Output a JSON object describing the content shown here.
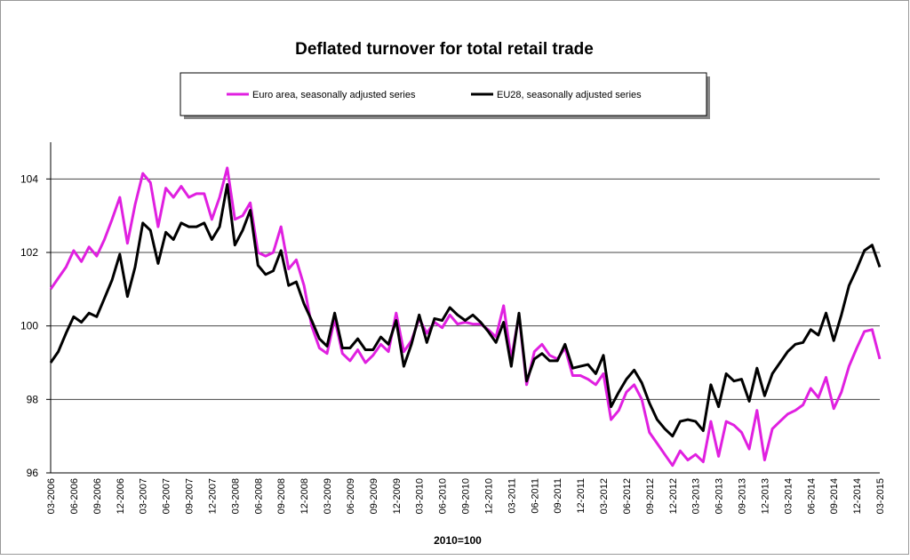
{
  "chart_data": {
    "type": "line",
    "title": "Deflated turnover for total retail trade",
    "xlabel": "2010=100",
    "categories": [
      "03-2006",
      null,
      null,
      "06-2006",
      null,
      null,
      "09-2006",
      null,
      null,
      "12-2006",
      null,
      null,
      "03-2007",
      null,
      null,
      "06-2007",
      null,
      null,
      "09-2007",
      null,
      null,
      "12-2007",
      null,
      null,
      "03-2008",
      null,
      null,
      "06-2008",
      null,
      null,
      "09-2008",
      null,
      null,
      "12-2008",
      null,
      null,
      "03-2009",
      null,
      null,
      "06-2009",
      null,
      null,
      "09-2009",
      null,
      null,
      "12-2009",
      null,
      null,
      "03-2010",
      null,
      null,
      "06-2010",
      null,
      null,
      "09-2010",
      null,
      null,
      "12-2010",
      null,
      null,
      "03-2011",
      null,
      null,
      "06-2011",
      null,
      null,
      "09-2011",
      null,
      null,
      "12-2011",
      null,
      null,
      "03-2012",
      null,
      null,
      "06-2012",
      null,
      null,
      "09-2012",
      null,
      null,
      "12-2012",
      null,
      null,
      "03-2013",
      null,
      null,
      "06-2013",
      null,
      null,
      "09-2013",
      null,
      null,
      "12-2013",
      null,
      null,
      "03-2014",
      null,
      null,
      "06-2014",
      null,
      null,
      "09-2014",
      null,
      null,
      "12-2014",
      null,
      null,
      "03-2015"
    ],
    "series": [
      {
        "name": "Euro area, seasonally adjusted series",
        "color": "#e020e0",
        "values": [
          101.0,
          101.3,
          101.6,
          102.05,
          101.75,
          102.15,
          101.9,
          102.35,
          102.9,
          103.5,
          102.25,
          103.3,
          104.15,
          103.9,
          102.7,
          103.75,
          103.5,
          103.8,
          103.5,
          103.6,
          103.6,
          102.9,
          103.5,
          104.3,
          102.9,
          103.0,
          103.35,
          102.0,
          101.9,
          102.0,
          102.7,
          101.55,
          101.8,
          101.1,
          100.0,
          99.4,
          99.25,
          100.2,
          99.25,
          99.05,
          99.35,
          99.0,
          99.2,
          99.5,
          99.3,
          100.35,
          99.3,
          99.6,
          100.2,
          99.8,
          100.1,
          99.95,
          100.3,
          100.05,
          100.1,
          100.05,
          100.05,
          99.9,
          99.7,
          100.55,
          99.1,
          100.3,
          98.4,
          99.3,
          99.5,
          99.2,
          99.1,
          99.4,
          98.65,
          98.65,
          98.55,
          98.4,
          98.7,
          97.45,
          97.7,
          98.2,
          98.4,
          98.0,
          97.1,
          96.8,
          96.5,
          96.2,
          96.6,
          96.35,
          96.5,
          96.3,
          97.4,
          96.45,
          97.4,
          97.3,
          97.1,
          96.65,
          97.7,
          96.35,
          97.2,
          97.4,
          97.6,
          97.7,
          97.85,
          98.3,
          98.05,
          98.6,
          97.75,
          98.2,
          98.9,
          99.4,
          99.85,
          99.9,
          99.1
        ]
      },
      {
        "name": "EU28, seasonally adjusted series",
        "color": "#000000",
        "values": [
          99.0,
          99.3,
          99.8,
          100.25,
          100.1,
          100.35,
          100.25,
          100.75,
          101.25,
          101.95,
          100.8,
          101.6,
          102.8,
          102.6,
          101.7,
          102.55,
          102.35,
          102.8,
          102.7,
          102.7,
          102.8,
          102.35,
          102.7,
          103.85,
          102.2,
          102.6,
          103.15,
          101.65,
          101.4,
          101.5,
          102.05,
          101.1,
          101.2,
          100.6,
          100.15,
          99.65,
          99.45,
          100.35,
          99.4,
          99.4,
          99.65,
          99.35,
          99.35,
          99.7,
          99.5,
          100.15,
          98.9,
          99.5,
          100.3,
          99.55,
          100.2,
          100.15,
          100.5,
          100.3,
          100.15,
          100.3,
          100.1,
          99.85,
          99.55,
          100.1,
          98.9,
          100.35,
          98.5,
          99.1,
          99.25,
          99.05,
          99.05,
          99.5,
          98.85,
          98.9,
          98.95,
          98.7,
          99.2,
          97.8,
          98.2,
          98.55,
          98.8,
          98.45,
          97.9,
          97.45,
          97.2,
          97.0,
          97.4,
          97.45,
          97.4,
          97.15,
          98.4,
          97.8,
          98.7,
          98.5,
          98.55,
          97.95,
          98.85,
          98.1,
          98.7,
          99.0,
          99.3,
          99.5,
          99.55,
          99.9,
          99.75,
          100.35,
          99.6,
          100.3,
          101.1,
          101.55,
          102.05,
          102.2,
          101.6
        ]
      }
    ],
    "ylim": [
      96,
      105
    ],
    "yticks": [
      96,
      98,
      100,
      102,
      104
    ],
    "grid": true
  }
}
